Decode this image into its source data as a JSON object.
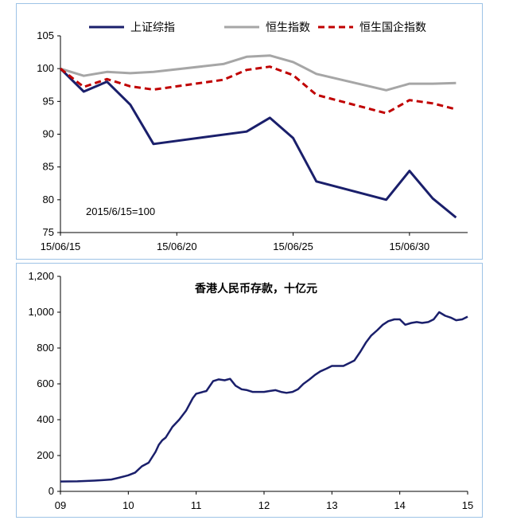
{
  "chart_data": [
    {
      "type": "line",
      "title": "",
      "annotation": "2015/6/15=100",
      "x": [
        0,
        1,
        2,
        3,
        4,
        5,
        6,
        7,
        8,
        9,
        10,
        11,
        12,
        13,
        14,
        15,
        16,
        17,
        18,
        19,
        20
      ],
      "x_tick_labels": [
        {
          "x": 0,
          "label": "15/06/15"
        },
        {
          "x": 5,
          "label": "15/06/20"
        },
        {
          "x": 10,
          "label": "15/06/25"
        },
        {
          "x": 15,
          "label": "15/06/30"
        }
      ],
      "ylim": [
        75,
        105
      ],
      "y_ticks": [
        75,
        80,
        85,
        90,
        95,
        100,
        105
      ],
      "xlim": [
        0,
        17.5
      ],
      "series": [
        {
          "name": "上证综指",
          "color": "#1a1f6b",
          "style": "solid",
          "x": [
            0,
            1,
            2,
            3,
            4,
            8,
            9,
            10,
            11,
            14,
            15,
            16,
            17
          ],
          "values": [
            100,
            96.5,
            98,
            94.5,
            88.5,
            90.4,
            92.5,
            89.4,
            82.8,
            80.0,
            84.4,
            80.2,
            77.3
          ]
        },
        {
          "name": "恒生指数",
          "color": "#a6a6a6",
          "style": "solid",
          "x": [
            0,
            1,
            2,
            3,
            4,
            7,
            8,
            9,
            10,
            11,
            14,
            15,
            16,
            17
          ],
          "values": [
            100,
            98.9,
            99.5,
            99.3,
            99.5,
            100.7,
            101.8,
            102.0,
            101.0,
            99.2,
            96.7,
            97.7,
            97.7,
            97.8
          ]
        },
        {
          "name": "恒生国企指数",
          "color": "#c00000",
          "style": "dashed",
          "x": [
            0,
            1,
            2,
            3,
            4,
            7,
            8,
            9,
            10,
            11,
            14,
            15,
            16,
            17
          ],
          "values": [
            100,
            97.2,
            98.4,
            97.3,
            96.8,
            98.3,
            99.8,
            100.3,
            99.0,
            96.0,
            93.2,
            95.2,
            94.7,
            93.8
          ]
        }
      ]
    },
    {
      "type": "line",
      "title": "香港人民币存款，十亿元",
      "x_tick_labels": [
        "09",
        "10",
        "11",
        "12",
        "13",
        "14",
        "15"
      ],
      "xlim": [
        2009,
        2015
      ],
      "ylim": [
        0,
        1200
      ],
      "y_tick_labels": [
        "0",
        "200",
        "400",
        "600",
        "800",
        "1,000",
        "1,200"
      ],
      "y_ticks": [
        0,
        200,
        400,
        600,
        800,
        1000,
        1200
      ],
      "series": [
        {
          "name": "香港人民币存款",
          "color": "#1a1f6b",
          "x": [
            2009.0,
            2009.25,
            2009.5,
            2009.6,
            2009.75,
            2009.85,
            2009.95,
            2010.0,
            2010.1,
            2010.2,
            2010.3,
            2010.4,
            2010.45,
            2010.5,
            2010.55,
            2010.65,
            2010.75,
            2010.85,
            2010.95,
            2011.0,
            2011.1,
            2011.15,
            2011.25,
            2011.33,
            2011.42,
            2011.5,
            2011.58,
            2011.67,
            2011.75,
            2011.83,
            2011.92,
            2012.0,
            2012.08,
            2012.17,
            2012.25,
            2012.33,
            2012.42,
            2012.5,
            2012.58,
            2012.67,
            2012.75,
            2012.83,
            2012.92,
            2013.0,
            2013.08,
            2013.17,
            2013.25,
            2013.33,
            2013.42,
            2013.5,
            2013.58,
            2013.67,
            2013.75,
            2013.83,
            2013.92,
            2014.0,
            2014.08,
            2014.17,
            2014.25,
            2014.33,
            2014.42,
            2014.5,
            2014.58,
            2014.67,
            2014.75,
            2014.83,
            2014.92,
            2015.0
          ],
          "values": [
            55,
            56,
            60,
            62,
            66,
            75,
            85,
            90,
            105,
            140,
            160,
            220,
            260,
            285,
            300,
            360,
            400,
            450,
            520,
            545,
            555,
            560,
            615,
            625,
            620,
            628,
            590,
            570,
            565,
            555,
            555,
            555,
            560,
            565,
            555,
            550,
            555,
            570,
            600,
            625,
            650,
            670,
            685,
            700,
            700,
            700,
            715,
            730,
            780,
            830,
            870,
            900,
            930,
            950,
            960,
            960,
            930,
            940,
            945,
            940,
            945,
            960,
            1000,
            980,
            970,
            955,
            960,
            975
          ]
        }
      ]
    }
  ]
}
